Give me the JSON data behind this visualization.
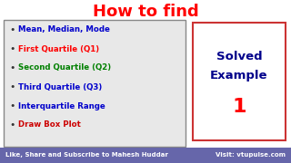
{
  "title": "How to find",
  "title_color": "#ff0000",
  "title_fontsize": 13,
  "title_fontweight": "bold",
  "bullet_items": [
    {
      "text": "Mean, Median, Mode",
      "color": "#0000cc"
    },
    {
      "text": "First Quartile (Q1)",
      "color": "#ff0000"
    },
    {
      "text": "Second Quartile (Q2)",
      "color": "#008000"
    },
    {
      "text": "Third Quartile (Q3)",
      "color": "#0000cc"
    },
    {
      "text": "Interquartile Range",
      "color": "#0000cc"
    },
    {
      "text": "Draw Box Plot",
      "color": "#cc0000"
    }
  ],
  "bullet_fontsize": 6.2,
  "bullet_fontweight": "bold",
  "left_box_bg": "#e8e8e8",
  "left_box_edge": "#888888",
  "right_box_bg": "#ffffff",
  "right_box_edge": "#cc3333",
  "solved_line1": "Solved",
  "solved_line2": "Example",
  "solved_color": "#00008b",
  "solved_fontsize": 9.5,
  "solved_fontweight": "bold",
  "number_text": "1",
  "number_color": "#ff0000",
  "number_fontsize": 16,
  "number_fontweight": "bold",
  "footer_bg": "#6666aa",
  "footer_text_left": "Like, Share and Subscribe to Mahesh Huddar",
  "footer_text_right": "Visit: vtupulse.com",
  "footer_color": "#ffffff",
  "footer_fontsize": 5.0,
  "bg_color": "#ffffff"
}
